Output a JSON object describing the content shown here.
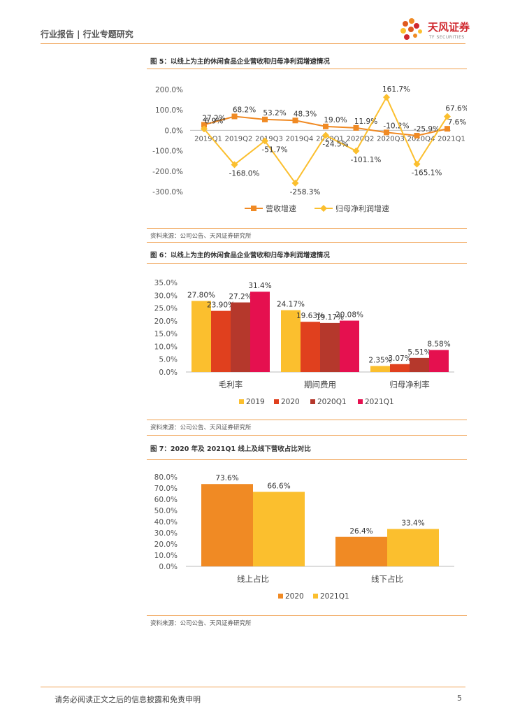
{
  "header": {
    "left_text": "行业报告 | 行业专题研究",
    "brand_cn": "天风证券",
    "brand_en": "TF SECURITIES"
  },
  "figures": [
    {
      "title": "图 5：以线上为主的休闲食品企业营收和归母净利润增速情况",
      "source": "资料来源：公司公告、天风证券研究所"
    },
    {
      "title": "图 6：以线上为主的休闲食品企业营收和归母净利润增速情况",
      "source": "资料来源：公司公告、天风证券研究所"
    },
    {
      "title": "图 7：2020 年及 2021Q1 线上及线下营收占比对比",
      "source": "资料来源：公司公告、天风证券研究所"
    }
  ],
  "chart_data": [
    {
      "type": "line",
      "categories": [
        "2019Q1",
        "2019Q2",
        "2019Q3",
        "2019Q4",
        "2020Q1",
        "2020Q2",
        "2020Q3",
        "2020Q4",
        "2021Q1"
      ],
      "series": [
        {
          "name": "营收增速",
          "color": "#f08a24",
          "values": [
            27.2,
            68.2,
            53.2,
            48.3,
            19.0,
            11.9,
            -10.2,
            -25.9,
            7.6
          ],
          "labels": [
            "27.2%",
            "68.2%",
            "53.2%",
            "48.3%",
            "19.0%",
            "11.9%",
            "-10.2%",
            "-25.9%",
            "7.6%"
          ]
        },
        {
          "name": "归母净利润增速",
          "color": "#fbbf2e",
          "values": [
            6.9,
            -168.0,
            -51.7,
            -258.3,
            -24.5,
            -101.1,
            161.7,
            -165.1,
            67.6
          ],
          "labels": [
            "6.9%",
            "-168.0%",
            "-51.7%",
            "-258.3%",
            "-24.5%",
            "-101.1%",
            "161.7%",
            "-165.1%",
            "67.6%"
          ]
        }
      ],
      "yticks": [
        "200.0%",
        "100.0%",
        "0.0%",
        "-100.0%",
        "-200.0%",
        "-300.0%"
      ],
      "ylim": [
        -300,
        200
      ]
    },
    {
      "type": "bar",
      "categories": [
        "毛利率",
        "期间费用",
        "归母净利率"
      ],
      "series": [
        {
          "name": "2019",
          "color": "#fbbf2e",
          "values": [
            27.8,
            24.17,
            2.35
          ],
          "labels": [
            "27.80%",
            "24.17%",
            "2.35%"
          ]
        },
        {
          "name": "2020",
          "color": "#e0401e",
          "values": [
            23.9,
            19.63,
            3.07
          ],
          "labels": [
            "23.90%",
            "19.63%",
            "3.07%"
          ]
        },
        {
          "name": "2020Q1",
          "color": "#b5382c",
          "values": [
            27.2,
            19.17,
            5.51
          ],
          "labels": [
            "27.2%",
            "19.17%",
            "5.51%"
          ]
        },
        {
          "name": "2021Q1",
          "color": "#e5104f",
          "values": [
            31.4,
            20.08,
            8.58
          ],
          "labels": [
            "31.4%",
            "20.08%",
            "8.58%"
          ]
        }
      ],
      "yticks": [
        "35.0%",
        "30.0%",
        "25.0%",
        "20.0%",
        "15.0%",
        "10.0%",
        "5.0%",
        "0.0%"
      ],
      "ylim": [
        0,
        35
      ]
    },
    {
      "type": "bar",
      "categories": [
        "线上占比",
        "线下占比"
      ],
      "series": [
        {
          "name": "2020",
          "color": "#f08a24",
          "values": [
            73.6,
            26.4
          ],
          "labels": [
            "73.6%",
            "26.4%"
          ]
        },
        {
          "name": "2021Q1",
          "color": "#fbbf2e",
          "values": [
            66.6,
            33.4
          ],
          "labels": [
            "66.6%",
            "33.4%"
          ]
        }
      ],
      "yticks": [
        "80.0%",
        "70.0%",
        "60.0%",
        "50.0%",
        "40.0%",
        "30.0%",
        "20.0%",
        "10.0%",
        "0.0%"
      ],
      "ylim": [
        0,
        80
      ]
    }
  ],
  "footer": {
    "disclaimer": "请务必阅读正文之后的信息披露和免责申明",
    "page_number": "5"
  }
}
